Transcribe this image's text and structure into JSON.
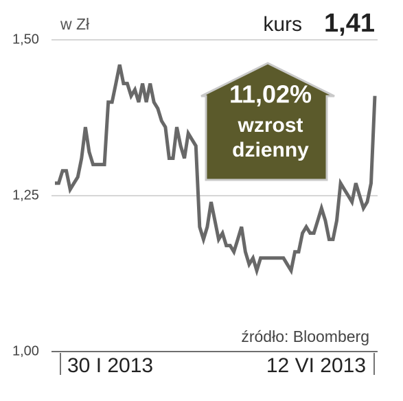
{
  "chart_data": {
    "type": "line",
    "unit_label": "w Zł",
    "price_label": "kurs",
    "price_value": "1,41",
    "annotation": [
      "11,02%",
      "wzrost",
      "dzienny"
    ],
    "source": "źródło: Bloomberg",
    "categories": [
      "30 I 2013",
      null,
      null,
      null,
      null,
      null,
      null,
      null,
      null,
      null,
      null,
      null,
      null,
      null,
      null,
      null,
      null,
      null,
      null,
      null,
      null,
      null,
      null,
      null,
      null,
      null,
      null,
      null,
      null,
      null,
      null,
      null,
      null,
      null,
      null,
      null,
      null,
      null,
      null,
      null,
      null,
      null,
      null,
      null,
      null,
      null,
      null,
      null,
      null,
      null,
      null,
      null,
      null,
      null,
      null,
      null,
      null,
      null,
      null,
      null,
      null,
      null,
      null,
      null,
      null,
      null,
      null,
      null,
      null,
      null,
      null,
      null,
      null,
      null,
      null,
      null,
      null,
      null,
      null,
      null,
      null,
      null,
      null,
      null,
      "12 VI 2013"
    ],
    "values": [
      1.27,
      1.27,
      1.29,
      1.29,
      1.26,
      1.27,
      1.28,
      1.31,
      1.36,
      1.32,
      1.3,
      1.3,
      1.3,
      1.3,
      1.4,
      1.4,
      1.43,
      1.46,
      1.43,
      1.43,
      1.41,
      1.42,
      1.4,
      1.43,
      1.4,
      1.43,
      1.4,
      1.39,
      1.37,
      1.36,
      1.31,
      1.31,
      1.36,
      1.33,
      1.31,
      1.35,
      1.34,
      1.33,
      1.2,
      1.18,
      1.2,
      1.24,
      1.21,
      1.18,
      1.19,
      1.17,
      1.17,
      1.16,
      1.18,
      1.2,
      1.16,
      1.14,
      1.15,
      1.13,
      1.15,
      1.15,
      1.15,
      1.15,
      1.15,
      1.15,
      1.15,
      1.14,
      1.13,
      1.16,
      1.16,
      1.19,
      1.2,
      1.19,
      1.19,
      1.21,
      1.23,
      1.21,
      1.18,
      1.18,
      1.21,
      1.27,
      1.26,
      1.25,
      1.24,
      1.27,
      1.25,
      1.23,
      1.24,
      1.27,
      1.41
    ],
    "color": "#686868",
    "ylim": [
      1.0,
      1.5
    ],
    "yticks": [
      {
        "value": 1.0,
        "label": "1,00"
      },
      {
        "value": 1.25,
        "label": "1,25"
      },
      {
        "value": 1.5,
        "label": "1,50"
      }
    ],
    "grid": true
  }
}
